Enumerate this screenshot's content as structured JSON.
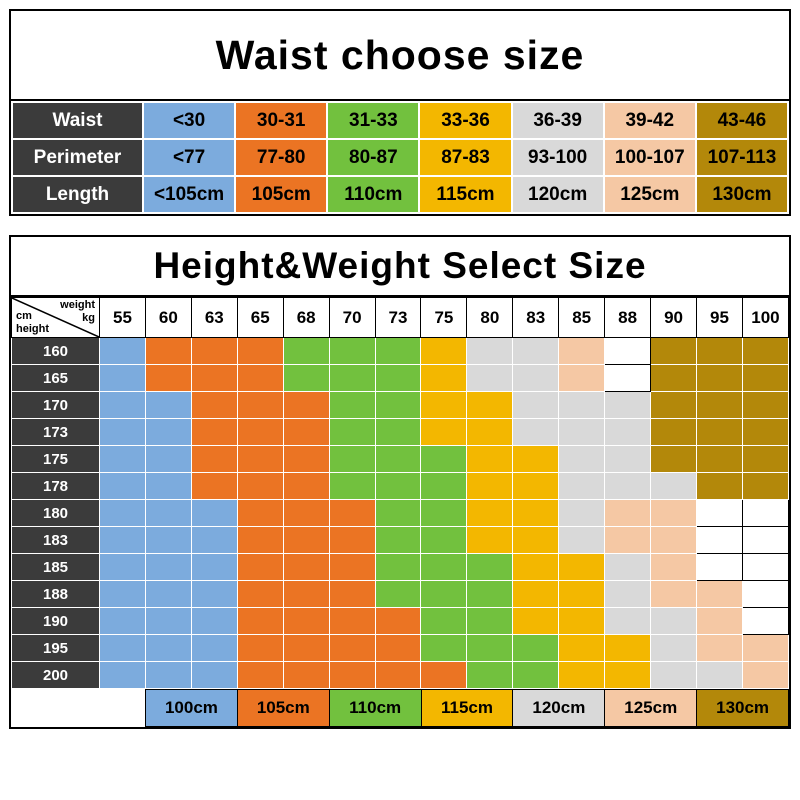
{
  "chart_data": [
    {
      "type": "table",
      "title": "Waist choose size",
      "row_labels": [
        "Waist",
        "Perimeter",
        "Length"
      ],
      "rows": [
        [
          "<30",
          "30-31",
          "31-33",
          "33-36",
          "36-39",
          "39-42",
          "43-46"
        ],
        [
          "<77",
          "77-80",
          "80-87",
          "87-83",
          "93-100",
          "100-107",
          "107-113"
        ],
        [
          "<105cm",
          "105cm",
          "110cm",
          "115cm",
          "120cm",
          "125cm",
          "130cm"
        ]
      ],
      "column_colors": [
        "#7cabdd",
        "#eb7423",
        "#72c13e",
        "#f3b700",
        "#d9d9d9",
        "#f5c8a4",
        "#b3880a"
      ],
      "header_bg": "#3b3b3b"
    },
    {
      "type": "heatmap",
      "title": "Height&Weight Select Size",
      "corner": {
        "weight": "weight",
        "kg": "kg",
        "cm": "cm",
        "height": "height"
      },
      "x": [
        "55",
        "60",
        "63",
        "65",
        "68",
        "70",
        "73",
        "75",
        "80",
        "83",
        "85",
        "88",
        "90",
        "95",
        "100"
      ],
      "y": [
        "160",
        "165",
        "170",
        "173",
        "175",
        "178",
        "180",
        "183",
        "185",
        "188",
        "190",
        "195",
        "200"
      ],
      "palette": {
        "B": "#7cabdd",
        "O": "#eb7423",
        "G": "#72c13e",
        "Y": "#f3b700",
        "S": "#d9d9d9",
        "P": "#f5c8a4",
        "D": "#b3880a",
        "W": "#ffffff"
      },
      "size_labels": {
        "B": "100cm",
        "O": "105cm",
        "G": "110cm",
        "Y": "115cm",
        "S": "120cm",
        "P": "125cm",
        "D": "130cm",
        "W": ""
      },
      "cells": [
        [
          "B",
          "O",
          "O",
          "O",
          "G",
          "G",
          "G",
          "Y",
          "S",
          "S",
          "P",
          "W",
          "D",
          "D",
          "D"
        ],
        [
          "B",
          "O",
          "O",
          "O",
          "G",
          "G",
          "G",
          "Y",
          "S",
          "S",
          "P",
          "W",
          "D",
          "D",
          "D"
        ],
        [
          "B",
          "B",
          "O",
          "O",
          "O",
          "G",
          "G",
          "Y",
          "Y",
          "S",
          "S",
          "S",
          "D",
          "D",
          "D"
        ],
        [
          "B",
          "B",
          "O",
          "O",
          "O",
          "G",
          "G",
          "Y",
          "Y",
          "S",
          "S",
          "S",
          "D",
          "D",
          "D"
        ],
        [
          "B",
          "B",
          "O",
          "O",
          "O",
          "G",
          "G",
          "G",
          "Y",
          "Y",
          "S",
          "S",
          "D",
          "D",
          "D"
        ],
        [
          "B",
          "B",
          "O",
          "O",
          "O",
          "G",
          "G",
          "G",
          "Y",
          "Y",
          "S",
          "S",
          "S",
          "D",
          "D"
        ],
        [
          "B",
          "B",
          "B",
          "O",
          "O",
          "O",
          "G",
          "G",
          "Y",
          "Y",
          "S",
          "P",
          "P",
          "W",
          "W"
        ],
        [
          "B",
          "B",
          "B",
          "O",
          "O",
          "O",
          "G",
          "G",
          "Y",
          "Y",
          "S",
          "P",
          "P",
          "W",
          "W"
        ],
        [
          "B",
          "B",
          "B",
          "O",
          "O",
          "O",
          "G",
          "G",
          "G",
          "Y",
          "Y",
          "S",
          "P",
          "W",
          "W"
        ],
        [
          "B",
          "B",
          "B",
          "O",
          "O",
          "O",
          "G",
          "G",
          "G",
          "Y",
          "Y",
          "S",
          "P",
          "P",
          "W"
        ],
        [
          "B",
          "B",
          "B",
          "O",
          "O",
          "O",
          "O",
          "G",
          "G",
          "Y",
          "Y",
          "S",
          "S",
          "P",
          "W"
        ],
        [
          "B",
          "B",
          "B",
          "O",
          "O",
          "O",
          "O",
          "G",
          "G",
          "G",
          "Y",
          "Y",
          "S",
          "P",
          "P"
        ],
        [
          "B",
          "B",
          "B",
          "O",
          "O",
          "O",
          "O",
          "O",
          "G",
          "G",
          "Y",
          "Y",
          "S",
          "S",
          "P"
        ]
      ],
      "legend": [
        {
          "label": "100cm",
          "color": "#7cabdd"
        },
        {
          "label": "105cm",
          "color": "#eb7423"
        },
        {
          "label": "110cm",
          "color": "#72c13e"
        },
        {
          "label": "115cm",
          "color": "#f3b700"
        },
        {
          "label": "120cm",
          "color": "#d9d9d9"
        },
        {
          "label": "125cm",
          "color": "#f5c8a4"
        },
        {
          "label": "130cm",
          "color": "#b3880a"
        }
      ]
    }
  ]
}
